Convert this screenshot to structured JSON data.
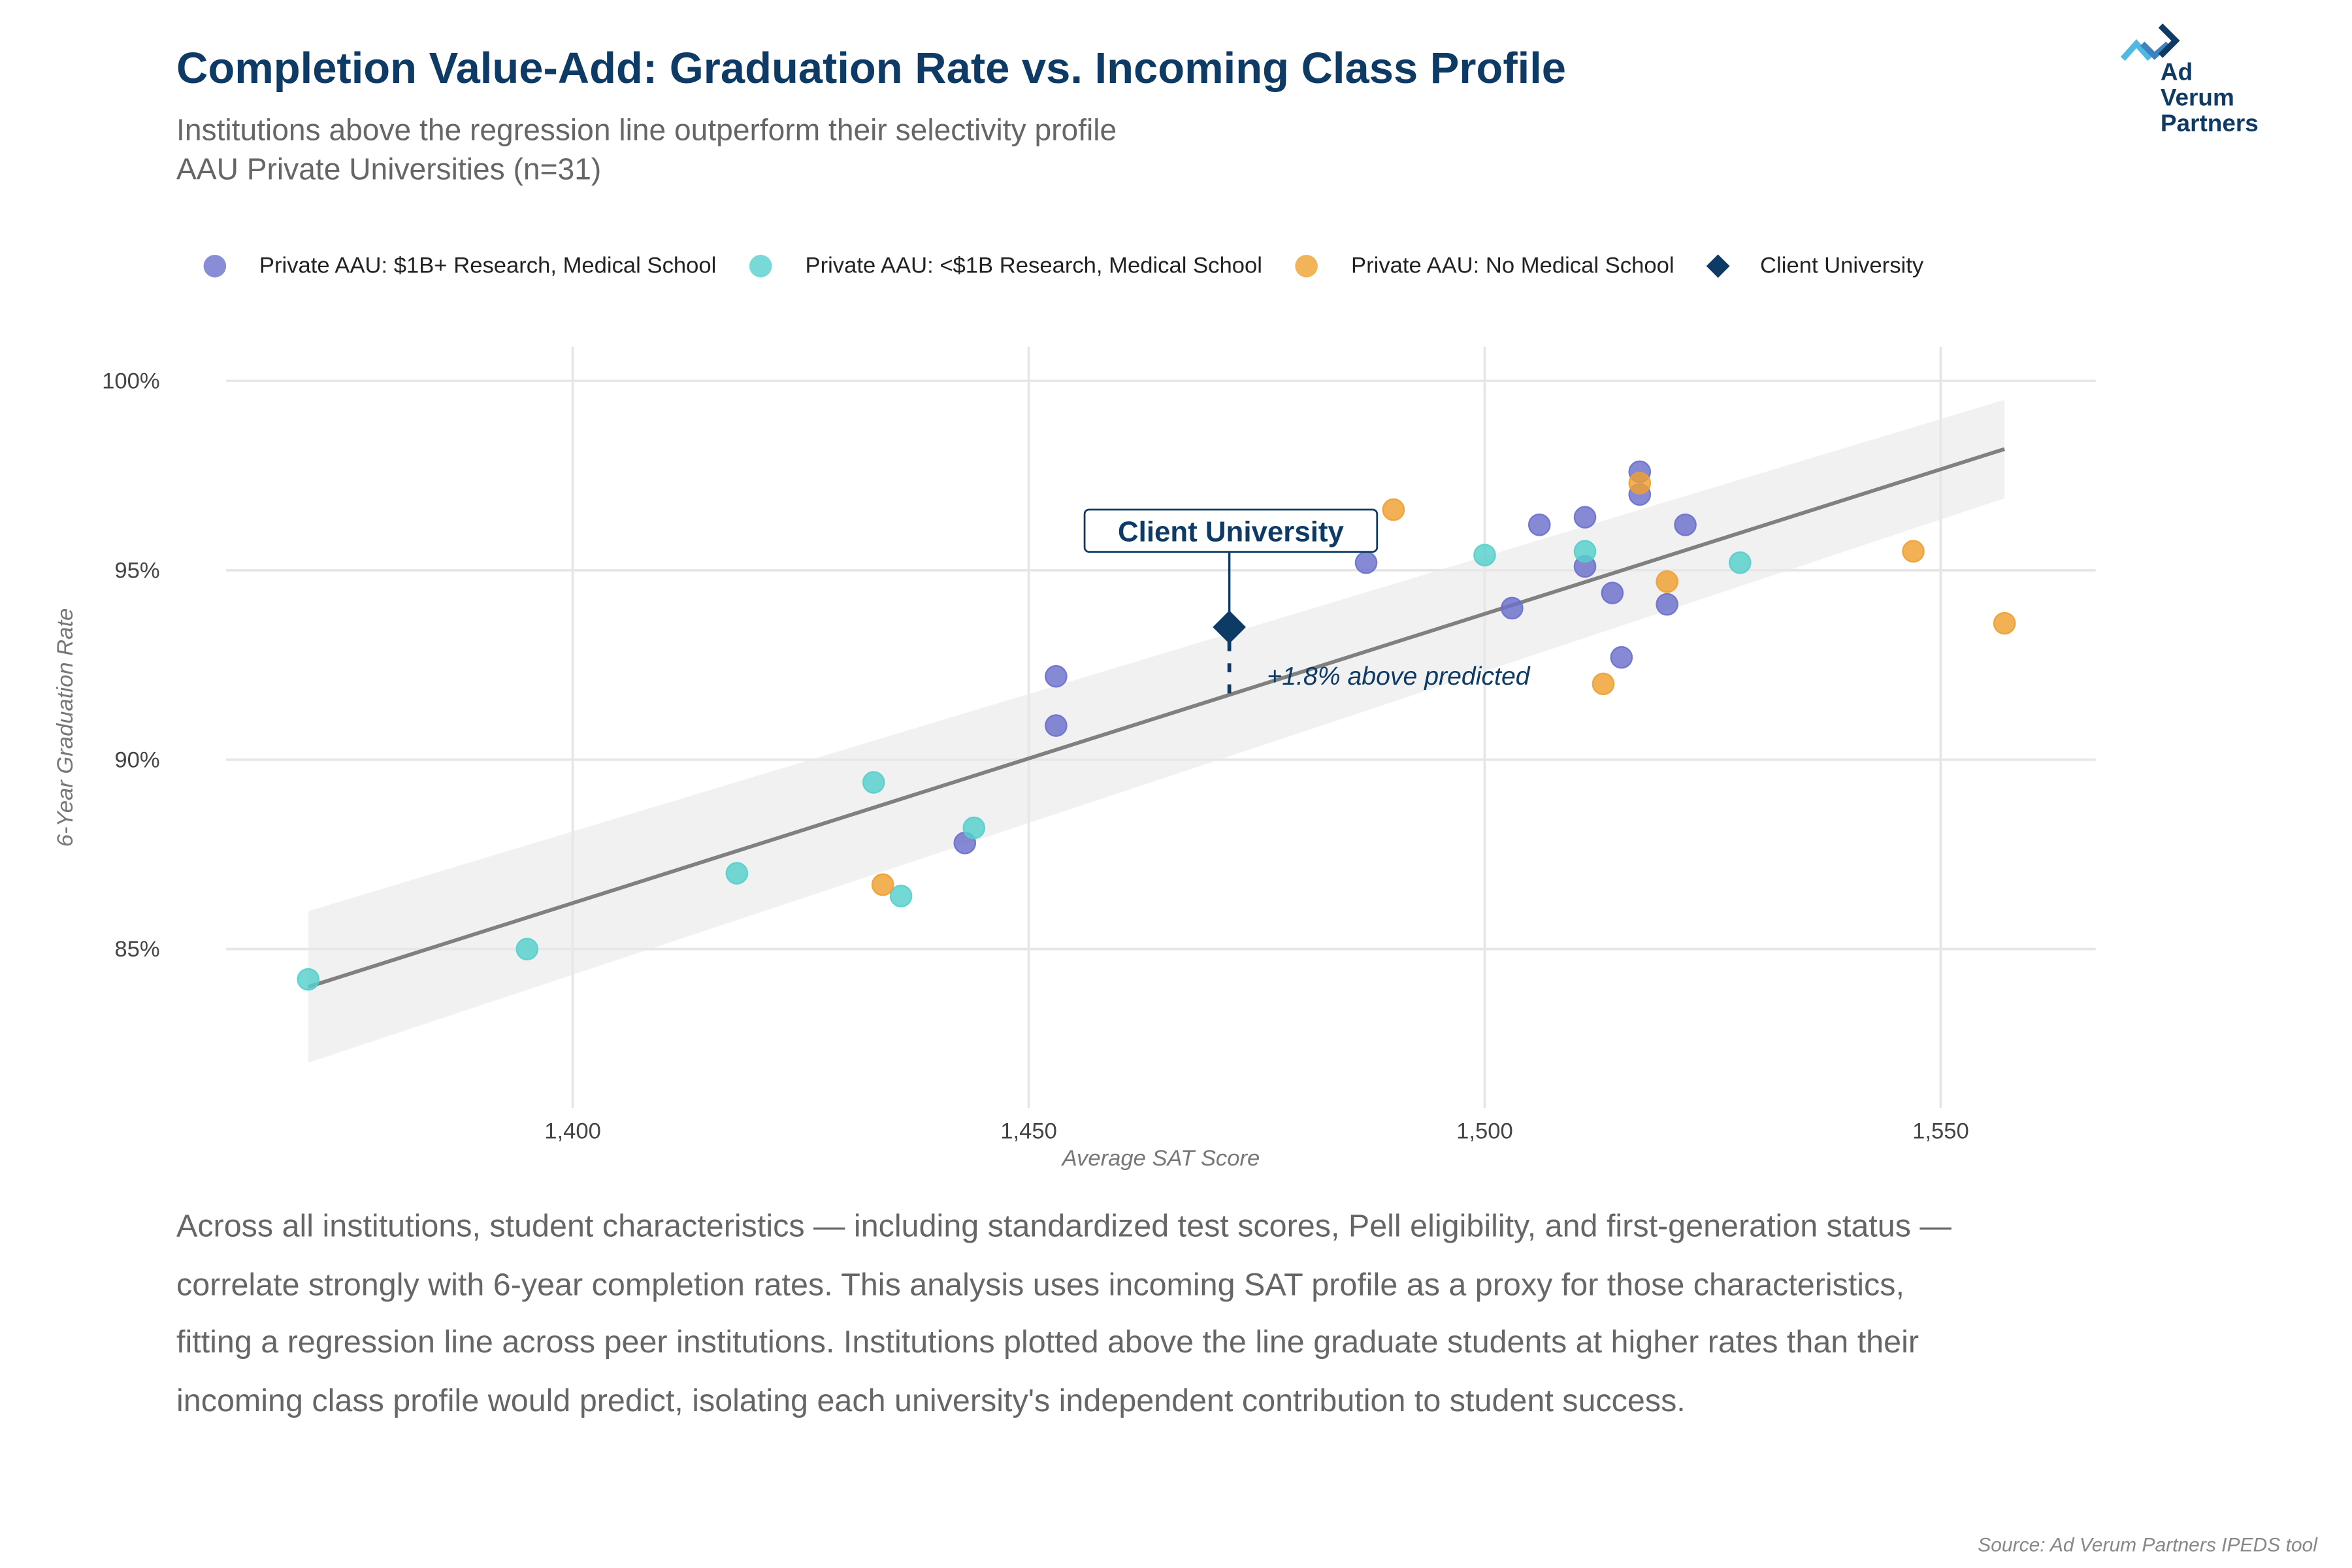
{
  "header": {
    "title": "Completion Value-Add: Graduation Rate vs. Incoming Class Profile",
    "subtitle": "Institutions above the regression line outperform their selectivity profile",
    "subtitle2": "AAU Private Universities (n=31)"
  },
  "logo": {
    "line1": "Ad Verum",
    "line2": "Partners"
  },
  "caption": "Across all institutions, student characteristics — including standardized test scores, Pell eligibility, and first-generation status — correlate strongly with 6-year completion rates. This analysis uses incoming SAT profile as a proxy for those characteristics, fitting a regression line across peer institutions. Institutions plotted above the line graduate students at higher rates than their incoming class profile would predict, isolating each university's independent contribution to student success.",
  "source": "Source: Ad Verum Partners IPEDS tool",
  "chart_data": {
    "type": "scatter",
    "xlabel": "Average SAT Score",
    "ylabel": "6-Year Graduation Rate",
    "xlim": [
      1362,
      1567
    ],
    "ylim": [
      80.8,
      100.9
    ],
    "xticks": [
      1400,
      1450,
      1500,
      1550
    ],
    "xtick_labels": [
      "1,400",
      "1,450",
      "1,500",
      "1,550"
    ],
    "yticks": [
      85,
      90,
      95,
      100
    ],
    "ytick_labels": [
      "85%",
      "90%",
      "95%",
      "100%"
    ],
    "grid": true,
    "legend": "top",
    "series": [
      {
        "name": "Private AAU: $1B+ Research, Medical School",
        "color": "#6b70cc",
        "points": [
          [
            1443,
            87.8
          ],
          [
            1453,
            90.9
          ],
          [
            1453,
            92.2
          ],
          [
            1487,
            95.2
          ],
          [
            1503,
            94.0
          ],
          [
            1506,
            96.2
          ],
          [
            1511,
            96.4
          ],
          [
            1511,
            95.1
          ],
          [
            1514,
            94.4
          ],
          [
            1515,
            92.7
          ],
          [
            1517,
            97.6
          ],
          [
            1517,
            97.0
          ],
          [
            1520,
            94.1
          ],
          [
            1522,
            96.2
          ]
        ]
      },
      {
        "name": "Private AAU: <$1B Research, Medical School",
        "color": "#56cfcc",
        "points": [
          [
            1371,
            84.2
          ],
          [
            1395,
            85.0
          ],
          [
            1418,
            87.0
          ],
          [
            1433,
            89.4
          ],
          [
            1436,
            86.4
          ],
          [
            1444,
            88.2
          ],
          [
            1500,
            95.4
          ],
          [
            1511,
            95.5
          ],
          [
            1528,
            95.2
          ]
        ]
      },
      {
        "name": "Private AAU: No Medical School",
        "color": "#f0a030",
        "points": [
          [
            1434,
            86.7
          ],
          [
            1490,
            96.6
          ],
          [
            1513,
            92.0
          ],
          [
            1517,
            97.3
          ],
          [
            1520,
            94.7
          ],
          [
            1547,
            95.5
          ],
          [
            1557,
            93.6
          ]
        ]
      },
      {
        "name": "Client University",
        "color": "#0d3b66",
        "marker": "diamond",
        "points": [
          [
            1472,
            93.5
          ]
        ]
      }
    ],
    "regression": {
      "x": [
        1371,
        1557
      ],
      "y": [
        84.0,
        98.2
      ],
      "ci_low": [
        82.0,
        96.9
      ],
      "ci_high": [
        86.0,
        99.5
      ],
      "color": "#808080"
    },
    "annotations": {
      "label": "Client University",
      "residual": "+1.8% above predicted",
      "predicted": 91.7
    }
  }
}
